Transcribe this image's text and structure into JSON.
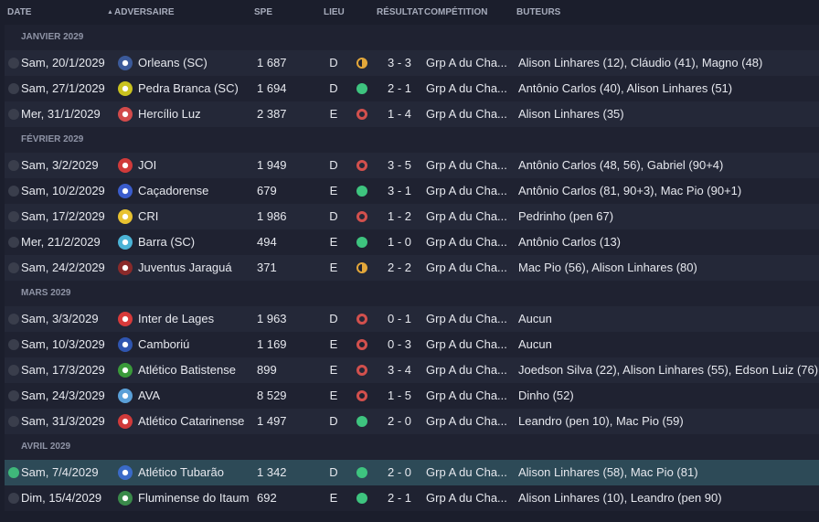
{
  "headers": {
    "date": "DATE",
    "opponent": "ADVERSAIRE",
    "spe": "SPE",
    "venue": "LIEU",
    "result": "RÉSULTAT",
    "competition": "COMPÉTITION",
    "scorers": "BUTEURS",
    "sort_indicator": "▲"
  },
  "colors": {
    "win": "#3ec47f",
    "loss": "#d2504d",
    "draw": "#e3a73a",
    "selected_row": "#2d4a57"
  },
  "months": [
    {
      "label": "JANVIER 2029",
      "matches": [
        {
          "date": "Sam, 20/1/2029",
          "opponent": "Orleans (SC)",
          "crest": "#3b5a9a",
          "spe": "1 687",
          "venue": "D",
          "outcome": "draw",
          "score": "3 - 3",
          "competition": "Grp A du Cha...",
          "scorers": "Alison Linhares (12), Cláudio (41), Magno (48)"
        },
        {
          "date": "Sam, 27/1/2029",
          "opponent": "Pedra Branca (SC)",
          "crest": "#c9c21e",
          "spe": "1 694",
          "venue": "D",
          "outcome": "win",
          "score": "2 - 1",
          "competition": "Grp A du Cha...",
          "scorers": "Antônio Carlos (40), Alison Linhares (51)"
        },
        {
          "date": "Mer, 31/1/2029",
          "opponent": "Hercílio Luz",
          "crest": "#d24a4a",
          "spe": "2 387",
          "venue": "E",
          "outcome": "loss",
          "score": "1 - 4",
          "competition": "Grp A du Cha...",
          "scorers": "Alison Linhares (35)"
        }
      ]
    },
    {
      "label": "FÉVRIER 2029",
      "matches": [
        {
          "date": "Sam, 3/2/2029",
          "opponent": "JOI",
          "crest": "#d03a3a",
          "spe": "1 949",
          "venue": "D",
          "outcome": "loss",
          "score": "3 - 5",
          "competition": "Grp A du Cha...",
          "scorers": "Antônio Carlos (48, 56), Gabriel (90+4)"
        },
        {
          "date": "Sam, 10/2/2029",
          "opponent": "Caçadorense",
          "crest": "#3a5ccc",
          "spe": "679",
          "venue": "E",
          "outcome": "win",
          "score": "3 - 1",
          "competition": "Grp A du Cha...",
          "scorers": "Antônio Carlos (81, 90+3), Mac Pio (90+1)"
        },
        {
          "date": "Sam, 17/2/2029",
          "opponent": "CRI",
          "crest": "#e8c230",
          "spe": "1 986",
          "venue": "D",
          "outcome": "loss",
          "score": "1 - 2",
          "competition": "Grp A du Cha...",
          "scorers": "Pedrinho (pen 67)"
        },
        {
          "date": "Mer, 21/2/2029",
          "opponent": "Barra (SC)",
          "crest": "#4bb3d6",
          "spe": "494",
          "venue": "E",
          "outcome": "win",
          "score": "1 - 0",
          "competition": "Grp A du Cha...",
          "scorers": "Antônio Carlos (13)"
        },
        {
          "date": "Sam, 24/2/2029",
          "opponent": "Juventus Jaraguá",
          "crest": "#8a2a2a",
          "spe": "371",
          "venue": "E",
          "outcome": "draw",
          "score": "2 - 2",
          "competition": "Grp A du Cha...",
          "scorers": "Mac Pio (56), Alison Linhares (80)"
        }
      ]
    },
    {
      "label": "MARS 2029",
      "matches": [
        {
          "date": "Sam, 3/3/2029",
          "opponent": "Inter de Lages",
          "crest": "#d83a3a",
          "spe": "1 963",
          "venue": "D",
          "outcome": "loss",
          "score": "0 - 1",
          "competition": "Grp A du Cha...",
          "scorers": "Aucun"
        },
        {
          "date": "Sam, 10/3/2029",
          "opponent": "Camboriú",
          "crest": "#2f55b0",
          "spe": "1 169",
          "venue": "E",
          "outcome": "loss",
          "score": "0 - 3",
          "competition": "Grp A du Cha...",
          "scorers": "Aucun"
        },
        {
          "date": "Sam, 17/3/2029",
          "opponent": "Atlético Batistense",
          "crest": "#3a9a3a",
          "spe": "899",
          "venue": "E",
          "outcome": "loss",
          "score": "3 - 4",
          "competition": "Grp A du Cha...",
          "scorers": "Joedson Silva (22), Alison Linhares (55), Edson Luiz (76)"
        },
        {
          "date": "Sam, 24/3/2029",
          "opponent": "AVA",
          "crest": "#5aa0d8",
          "spe": "8 529",
          "venue": "E",
          "outcome": "loss",
          "score": "1 - 5",
          "competition": "Grp A du Cha...",
          "scorers": "Dinho (52)"
        },
        {
          "date": "Sam, 31/3/2029",
          "opponent": "Atlético Catarinense",
          "crest": "#d03a3a",
          "spe": "1 497",
          "venue": "D",
          "outcome": "win",
          "score": "2 - 0",
          "competition": "Grp A du Cha...",
          "scorers": "Leandro (pen 10), Mac Pio (59)"
        }
      ]
    },
    {
      "label": "AVRIL 2029",
      "matches": [
        {
          "date": "Sam, 7/4/2029",
          "opponent": "Atlético Tubarão",
          "crest": "#3a6ac8",
          "spe": "1 342",
          "venue": "D",
          "outcome": "win",
          "score": "2 - 0",
          "competition": "Grp A du Cha...",
          "scorers": "Alison Linhares (58), Mac Pio (81)",
          "selected": true
        },
        {
          "date": "Dim, 15/4/2029",
          "opponent": "Fluminense do Itaum",
          "crest": "#3a8a4a",
          "spe": "692",
          "venue": "E",
          "outcome": "win",
          "score": "2 - 1",
          "competition": "Grp A du Cha...",
          "scorers": "Alison Linhares (10), Leandro (pen 90)"
        }
      ]
    }
  ]
}
